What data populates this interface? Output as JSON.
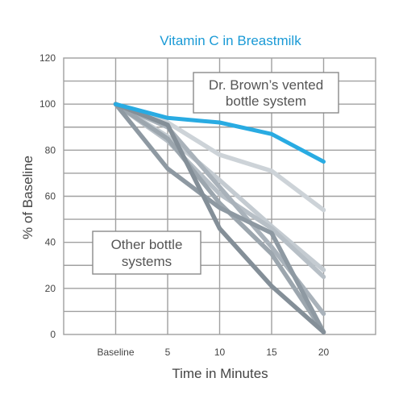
{
  "chart_data": {
    "type": "line",
    "title": "Vitamin C in Breastmilk",
    "xlabel": "Time in Minutes",
    "ylabel": "% of Baseline",
    "x": [
      0,
      5,
      10,
      15,
      20
    ],
    "x_tick_labels": [
      "Baseline",
      "5",
      "10",
      "15",
      "20"
    ],
    "ylim": [
      0,
      120
    ],
    "y_ticks": [
      0,
      20,
      40,
      60,
      80,
      100,
      120
    ],
    "grid": true,
    "annotations": [
      {
        "id": "dr-browns",
        "lines": [
          "Dr. Brown’s vented",
          "bottle system"
        ]
      },
      {
        "id": "other",
        "lines": [
          "Other bottle",
          "systems"
        ]
      }
    ],
    "series": [
      {
        "values": [
          100,
          92,
          78,
          71,
          54
        ],
        "color": "#cdd3d8"
      },
      {
        "values": [
          100,
          86,
          67,
          47,
          28
        ],
        "color": "#c4cbd1"
      },
      {
        "values": [
          100,
          84,
          61,
          46,
          25
        ],
        "color": "#b7bfc6"
      },
      {
        "values": [
          100,
          90,
          64,
          38,
          9
        ],
        "color": "#a9b2ba"
      },
      {
        "values": [
          100,
          85,
          57,
          35,
          1
        ],
        "color": "#9ca6ae"
      },
      {
        "values": [
          100,
          72,
          55,
          44,
          1
        ],
        "color": "#8e99a2"
      },
      {
        "values": [
          100,
          91,
          46,
          21,
          1
        ],
        "color": "#848f98"
      },
      {
        "values": [
          100,
          94,
          92,
          87,
          75
        ],
        "color": "#29abe2"
      }
    ],
    "colors": {
      "title": "#1a9ad6",
      "highlight": "#29abe2",
      "axis_text": "#444444",
      "grid": "#a0a0a0"
    }
  }
}
